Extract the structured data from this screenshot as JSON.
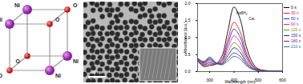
{
  "panels": {
    "crystal": {
      "atoms": [
        "Ni",
        "O",
        "Ni",
        "O",
        "O",
        "Ni",
        "O",
        "Ni"
      ]
    },
    "tem": {
      "scale_bar": "20 nm"
    }
  },
  "chart_data": {
    "type": "line",
    "x_label": "Wavelength (nm)",
    "y_label": "Absorbance (a.u.)",
    "annotations": [
      "NaBH₄",
      "Cat."
    ],
    "x": [
      250,
      275,
      300,
      325,
      350,
      375,
      400,
      425,
      450,
      475,
      500,
      550,
      600
    ],
    "series": [
      {
        "name": "0 s",
        "color": "#000000",
        "values": [
          0.32,
          0.15,
          0.18,
          0.22,
          0.45,
          1.2,
          1.9,
          1.55,
          0.75,
          0.28,
          0.08,
          0.02,
          0.01
        ]
      },
      {
        "name": "30 s",
        "color": "#e8141c",
        "values": [
          0.34,
          0.18,
          0.22,
          0.22,
          0.36,
          0.95,
          1.45,
          1.18,
          0.57,
          0.21,
          0.06,
          0.02,
          0.01
        ]
      },
      {
        "name": "60 s",
        "color": "#1f2fe0",
        "values": [
          0.35,
          0.2,
          0.26,
          0.22,
          0.32,
          0.82,
          1.25,
          1.02,
          0.49,
          0.18,
          0.05,
          0.02,
          0.01
        ]
      },
      {
        "name": "90 s",
        "color": "#e020c8",
        "values": [
          0.36,
          0.22,
          0.3,
          0.23,
          0.28,
          0.7,
          1.05,
          0.86,
          0.41,
          0.15,
          0.05,
          0.02,
          0.01
        ]
      },
      {
        "name": "120 s",
        "color": "#8a8a10",
        "values": [
          0.37,
          0.24,
          0.34,
          0.24,
          0.25,
          0.57,
          0.85,
          0.69,
          0.33,
          0.12,
          0.04,
          0.01,
          0.01
        ]
      },
      {
        "name": "150 s",
        "color": "#1a2a8a",
        "values": [
          0.38,
          0.26,
          0.37,
          0.25,
          0.23,
          0.47,
          0.7,
          0.57,
          0.27,
          0.1,
          0.03,
          0.01,
          0.01
        ]
      },
      {
        "name": "180 s",
        "color": "#7a1a9a",
        "values": [
          0.39,
          0.28,
          0.4,
          0.26,
          0.21,
          0.38,
          0.55,
          0.45,
          0.22,
          0.08,
          0.03,
          0.01,
          0.01
        ]
      },
      {
        "name": "210 s",
        "color": "#1a7a8a",
        "values": [
          0.4,
          0.3,
          0.43,
          0.27,
          0.2,
          0.31,
          0.45,
          0.37,
          0.18,
          0.07,
          0.02,
          0.01,
          0.01
        ]
      }
    ],
    "xlim": [
      250,
      600
    ],
    "xticks": [
      300,
      400,
      500,
      600
    ],
    "ylim": [
      0,
      2.0
    ],
    "yticks": [
      {
        "value": 0,
        "label": "0.0"
      },
      {
        "value": 0.5,
        "label": "0.5"
      },
      {
        "value": 1.0,
        "label": "1.0"
      },
      {
        "value": 1.5,
        "label": "1.5"
      },
      {
        "value": 2.0,
        "label": "2.0"
      }
    ],
    "legend": "right"
  }
}
